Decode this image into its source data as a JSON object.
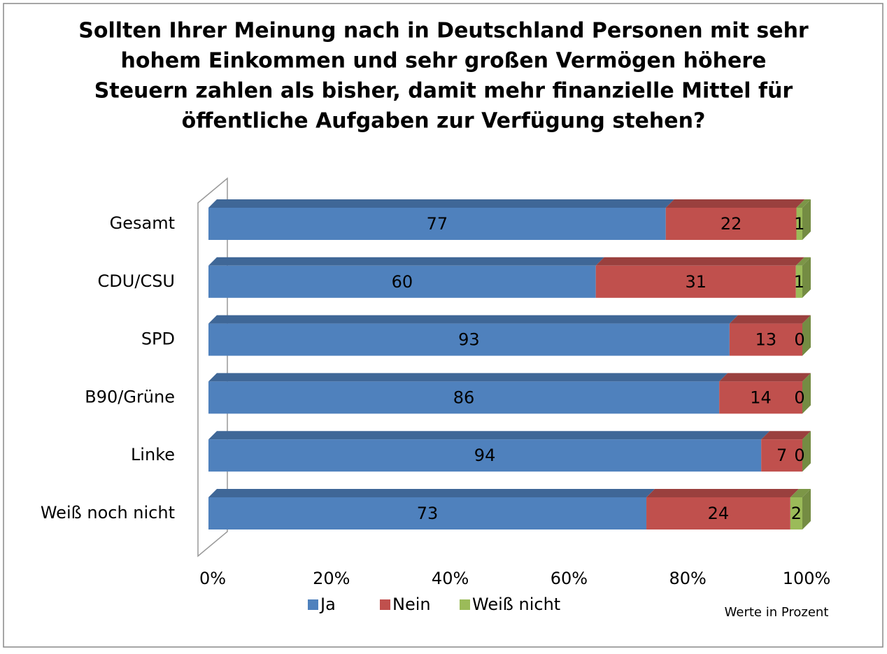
{
  "chart_data": {
    "type": "bar",
    "orientation": "horizontal",
    "stack": "percent",
    "title": [
      "Sollten Ihrer Meinung nach in Deutschland Personen mit sehr",
      "hohem Einkommen und sehr großen Vermögen höhere",
      "Steuern zahlen als bisher, damit mehr finanzielle Mittel für",
      "öffentliche Aufgaben zur Verfügung stehen?"
    ],
    "categories": [
      "Gesamt",
      "CDU/CSU",
      "SPD",
      "B90/Grüne",
      "Linke",
      "Weiß noch nicht"
    ],
    "series": [
      {
        "name": "Ja",
        "color": "#4f81bd",
        "values": [
          77,
          60,
          93,
          86,
          94,
          73
        ]
      },
      {
        "name": "Nein",
        "color": "#c0504d",
        "values": [
          22,
          31,
          13,
          14,
          7,
          24
        ]
      },
      {
        "name": "Weiß nicht",
        "color": "#9bbb59",
        "values": [
          1,
          1,
          0,
          0,
          0,
          2
        ]
      }
    ],
    "xlim": [
      0,
      100
    ],
    "xticks": [
      {
        "value": 0,
        "label": "0%"
      },
      {
        "value": 20,
        "label": "20%"
      },
      {
        "value": 40,
        "label": "40%"
      },
      {
        "value": 60,
        "label": "60%"
      },
      {
        "value": 80,
        "label": "80%"
      },
      {
        "value": 100,
        "label": "100%"
      }
    ],
    "legend": "bottom",
    "note": "Werte in Prozent"
  }
}
